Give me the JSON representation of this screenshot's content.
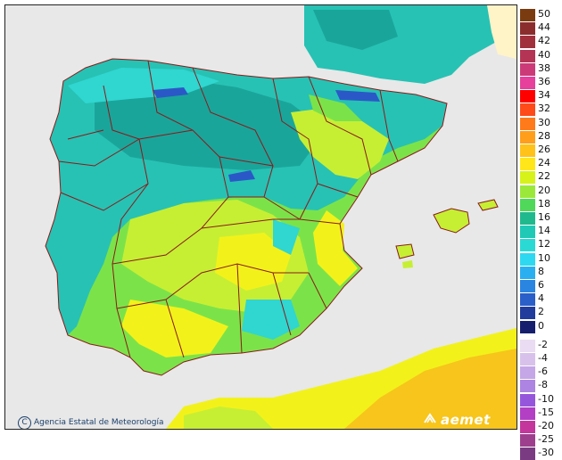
{
  "map": {
    "credit": "Agencia Estatal de Meteorología",
    "logo": "aemet",
    "colors": {
      "sea": "#e8e8e8",
      "border": "#8b1a1a",
      "teal_dark": "#1aa59b",
      "teal": "#27c2b4",
      "cyan": "#30d6d0",
      "green": "#7be349",
      "lime": "#c6ef34",
      "yellow": "#f2f21a",
      "orange": "#f7c51b",
      "blue": "#2b58c7"
    }
  },
  "legend": {
    "positive": [
      {
        "label": "50",
        "color": "#7a3b10"
      },
      {
        "label": "44",
        "color": "#8b2d2d"
      },
      {
        "label": "42",
        "color": "#a0303c"
      },
      {
        "label": "40",
        "color": "#b43456"
      },
      {
        "label": "38",
        "color": "#cc3a78"
      },
      {
        "label": "36",
        "color": "#e63f9c"
      },
      {
        "label": "34",
        "color": "#ff0000"
      },
      {
        "label": "32",
        "color": "#ff4a1a"
      },
      {
        "label": "30",
        "color": "#ff7a1a"
      },
      {
        "label": "28",
        "color": "#ff9e1a"
      },
      {
        "label": "26",
        "color": "#ffc21a"
      },
      {
        "label": "24",
        "color": "#ffe61a"
      },
      {
        "label": "22",
        "color": "#d6f21a"
      },
      {
        "label": "20",
        "color": "#9be83a"
      },
      {
        "label": "18",
        "color": "#4fd85a"
      },
      {
        "label": "16",
        "color": "#20b98e"
      },
      {
        "label": "14",
        "color": "#1fc9b5"
      },
      {
        "label": "12",
        "color": "#2bd9d4"
      },
      {
        "label": "10",
        "color": "#2ed8f0"
      },
      {
        "label": "8",
        "color": "#2ab0f0"
      },
      {
        "label": "6",
        "color": "#2a85e0"
      },
      {
        "label": "4",
        "color": "#2a5ec8"
      },
      {
        "label": "2",
        "color": "#213c9c"
      },
      {
        "label": "0",
        "color": "#151f6e"
      }
    ],
    "negative": [
      {
        "label": "-2",
        "color": "#eadcf2"
      },
      {
        "label": "-4",
        "color": "#d8c2ec"
      },
      {
        "label": "-6",
        "color": "#c5a6e6"
      },
      {
        "label": "-8",
        "color": "#ad84e2"
      },
      {
        "label": "-10",
        "color": "#9656dc"
      },
      {
        "label": "-15",
        "color": "#b23fc4"
      },
      {
        "label": "-20",
        "color": "#c4369c"
      },
      {
        "label": "-25",
        "color": "#9e3f8e"
      },
      {
        "label": "-30",
        "color": "#7a3b82"
      }
    ]
  }
}
